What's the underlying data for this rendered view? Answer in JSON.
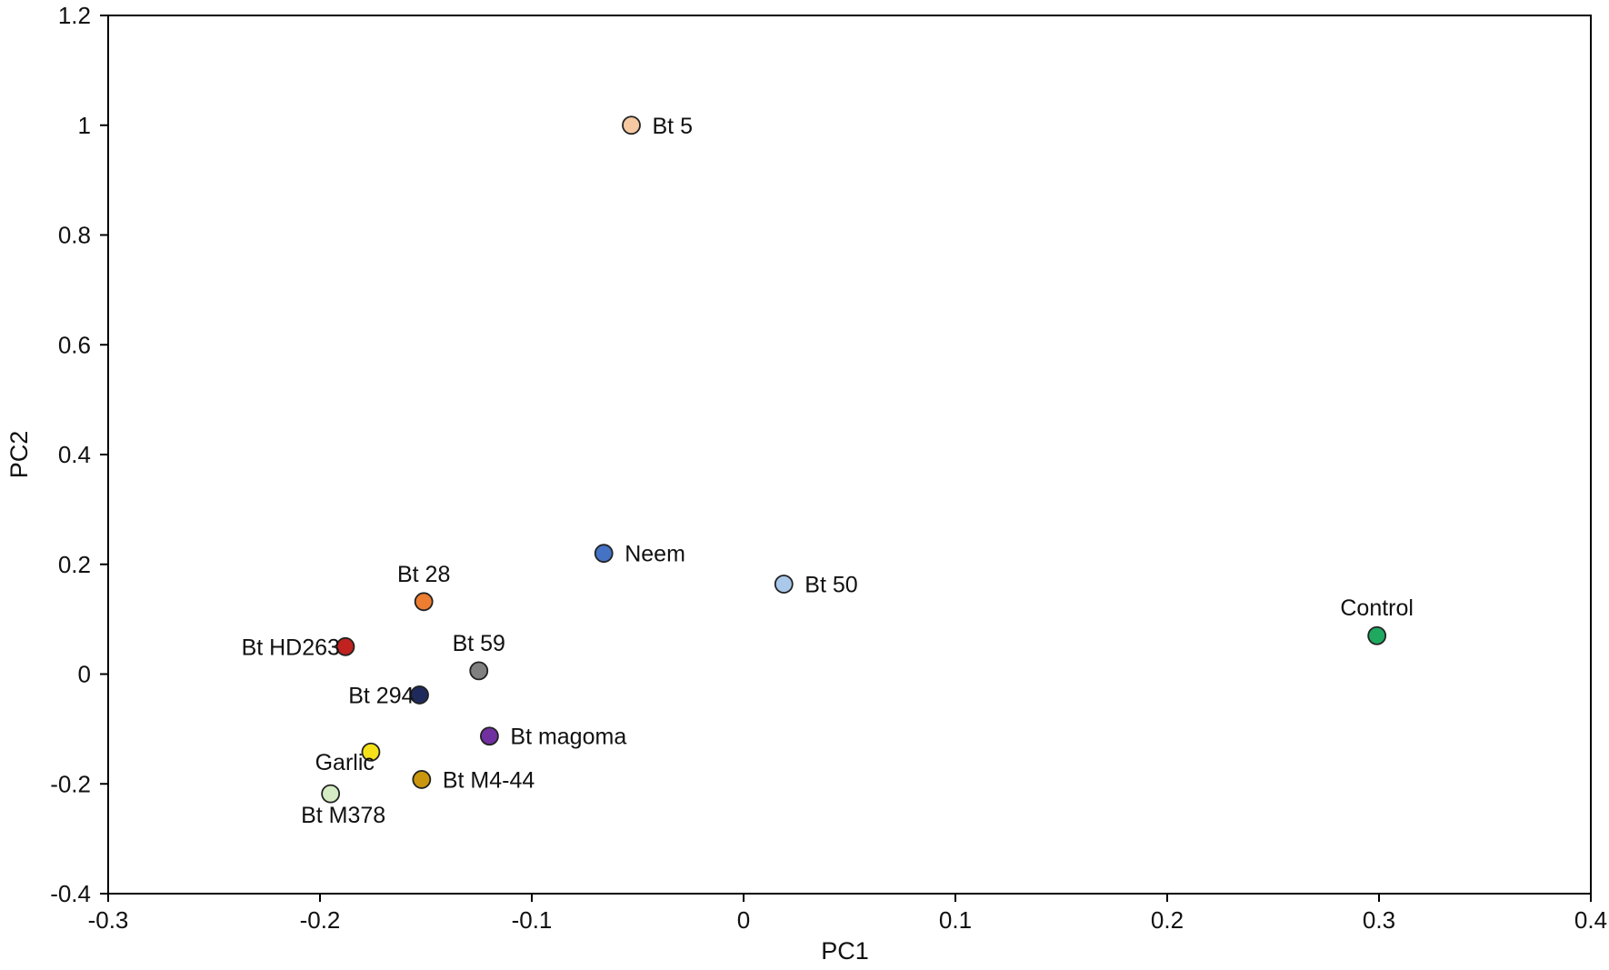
{
  "chart_data": {
    "type": "scatter",
    "title": "",
    "xlabel": "PC1",
    "ylabel": "PC2",
    "xlim": [
      -0.3,
      0.4
    ],
    "ylim": [
      -0.4,
      1.2
    ],
    "xticks": [
      -0.3,
      -0.2,
      -0.1,
      0,
      0.1,
      0.2,
      0.3,
      0.4
    ],
    "xtick_labels": [
      "-0.3",
      "-0.2",
      "-0.1",
      "0",
      "0.1",
      "0.2",
      "0.3",
      "0.4"
    ],
    "yticks": [
      -0.4,
      -0.2,
      0,
      0.2,
      0.4,
      0.6,
      0.8,
      1,
      1.2
    ],
    "ytick_labels": [
      "-0.4",
      "-0.2",
      "0",
      "0.2",
      "0.4",
      "0.6",
      "0.8",
      "1",
      "1.2"
    ],
    "grid": false,
    "points": [
      {
        "label": "Bt 5",
        "x": -0.053,
        "y": 1.0,
        "color": "#F6C9A2",
        "label_pos": "right"
      },
      {
        "label": "Neem",
        "x": -0.066,
        "y": 0.22,
        "color": "#4472C4",
        "label_pos": "right"
      },
      {
        "label": "Bt 50",
        "x": 0.019,
        "y": 0.164,
        "color": "#A9C8EA",
        "label_pos": "right"
      },
      {
        "label": "Control",
        "x": 0.299,
        "y": 0.07,
        "color": "#1FA85F",
        "label_pos": "above"
      },
      {
        "label": "Bt 28",
        "x": -0.151,
        "y": 0.132,
        "color": "#ED7D31",
        "label_pos": "above"
      },
      {
        "label": "Bt HD263",
        "x": -0.188,
        "y": 0.05,
        "color": "#C0221F",
        "label_pos": "left"
      },
      {
        "label": "Bt 59",
        "x": -0.125,
        "y": 0.006,
        "color": "#808080",
        "label_pos": "above"
      },
      {
        "label": "Bt 294",
        "x": -0.153,
        "y": -0.038,
        "color": "#1F2A5C",
        "label_pos": "left"
      },
      {
        "label": "Bt magoma",
        "x": -0.12,
        "y": -0.113,
        "color": "#7030A0",
        "label_pos": "right"
      },
      {
        "label": "Garlic",
        "x": -0.176,
        "y": -0.142,
        "color": "#F5E11A",
        "label_pos": "below-left"
      },
      {
        "label": "Bt M4-44",
        "x": -0.152,
        "y": -0.192,
        "color": "#C9960E",
        "label_pos": "right"
      },
      {
        "label": "Bt M378",
        "x": -0.195,
        "y": -0.218,
        "color": "#D4EBC4",
        "label_pos": "below"
      }
    ]
  }
}
